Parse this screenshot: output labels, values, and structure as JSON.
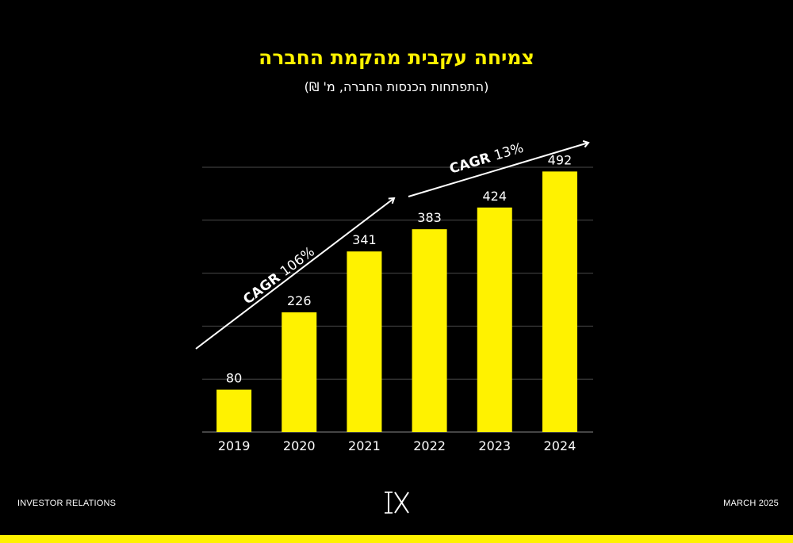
{
  "title": "צמיחה עקבית מהקמת החברה",
  "subtitle": "(התפתחות הכנסות החברה, מ' ₪)",
  "footer": {
    "left": "INVESTOR RELATIONS",
    "right": "MARCH 2025",
    "logo_text": "IX"
  },
  "colors": {
    "background": "#000000",
    "accent": "#fff200",
    "text": "#ffffff",
    "grid": "#4a4a4a"
  },
  "chart_data": {
    "type": "bar",
    "title": "צמיחה עקבית מהקמת החברה",
    "subtitle": "(התפתחות הכנסות החברה, מ' ₪)",
    "xlabel": "",
    "ylabel": "",
    "categories": [
      "2019",
      "2020",
      "2021",
      "2022",
      "2023",
      "2024"
    ],
    "values": [
      80,
      226,
      341,
      383,
      424,
      492
    ],
    "data_labels": [
      "80",
      "226",
      "341",
      "383",
      "424",
      "492"
    ],
    "ylim": [
      0,
      500
    ],
    "grid": true,
    "bar_color": "#fff200",
    "annotations": [
      {
        "bold": "CAGR",
        "text": "106%",
        "from_category": "2019",
        "to_category": "2021"
      },
      {
        "bold": "CAGR",
        "text": "13%",
        "from_category": "2022",
        "to_category": "2024"
      }
    ]
  }
}
